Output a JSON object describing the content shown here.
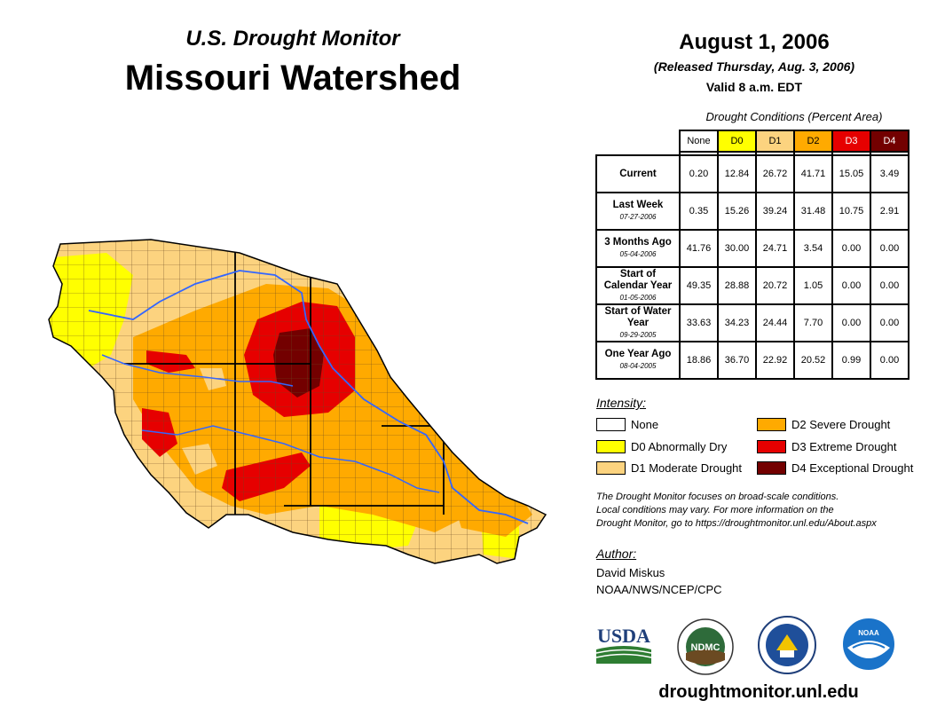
{
  "header": {
    "subtitle": "U.S. Drought Monitor",
    "title": "Missouri Watershed",
    "date": "August 1, 2006",
    "released": "(Released Thursday, Aug. 3, 2006)",
    "valid": "Valid 8 a.m. EDT"
  },
  "table": {
    "caption": "Drought Conditions (Percent Area)",
    "columns": [
      "None",
      "D0",
      "D1",
      "D2",
      "D3",
      "D4"
    ],
    "column_colors": [
      "#ffffff",
      "#ffff00",
      "#fcd37f",
      "#ffaa00",
      "#e60000",
      "#730000"
    ],
    "rows": [
      {
        "label": "Current",
        "date": "",
        "values": [
          "0.20",
          "12.84",
          "26.72",
          "41.71",
          "15.05",
          "3.49"
        ]
      },
      {
        "label": "Last Week",
        "date": "07-27-2006",
        "values": [
          "0.35",
          "15.26",
          "39.24",
          "31.48",
          "10.75",
          "2.91"
        ]
      },
      {
        "label": "3 Months Ago",
        "date": "05-04-2006",
        "values": [
          "41.76",
          "30.00",
          "24.71",
          "3.54",
          "0.00",
          "0.00"
        ]
      },
      {
        "label": "Start of Calendar Year",
        "date": "01-05-2006",
        "values": [
          "49.35",
          "28.88",
          "20.72",
          "1.05",
          "0.00",
          "0.00"
        ]
      },
      {
        "label": "Start of Water Year",
        "date": "09-29-2005",
        "values": [
          "33.63",
          "34.23",
          "24.44",
          "7.70",
          "0.00",
          "0.00"
        ]
      },
      {
        "label": "One Year Ago",
        "date": "08-04-2005",
        "values": [
          "18.86",
          "36.70",
          "22.92",
          "20.52",
          "0.99",
          "0.00"
        ]
      }
    ]
  },
  "legend": {
    "heading": "Intensity:",
    "items": [
      {
        "label": "None",
        "color": "#ffffff"
      },
      {
        "label": "D0 Abnormally Dry",
        "color": "#ffff00"
      },
      {
        "label": "D1 Moderate Drought",
        "color": "#fcd37f"
      },
      {
        "label": "D2 Severe Drought",
        "color": "#ffaa00"
      },
      {
        "label": "D3 Extreme Drought",
        "color": "#e60000"
      },
      {
        "label": "D4 Exceptional Drought",
        "color": "#730000"
      }
    ]
  },
  "note": {
    "line1": "The Drought Monitor focuses on broad-scale conditions.",
    "line2": "Local conditions may vary. For more information on the",
    "line3": "Drought Monitor, go to https://droughtmonitor.unl.edu/About.aspx"
  },
  "author": {
    "heading": "Author:",
    "name": "David Miskus",
    "org": "NOAA/NWS/NCEP/CPC"
  },
  "logos": {
    "usda": "USDA",
    "ndmc": "NDMC",
    "noaa": "NOAA"
  },
  "website": "droughtmonitor.unl.edu",
  "colors": {
    "river": "#3366ff",
    "county_line": "#5a3a1a",
    "state_line": "#000000"
  }
}
